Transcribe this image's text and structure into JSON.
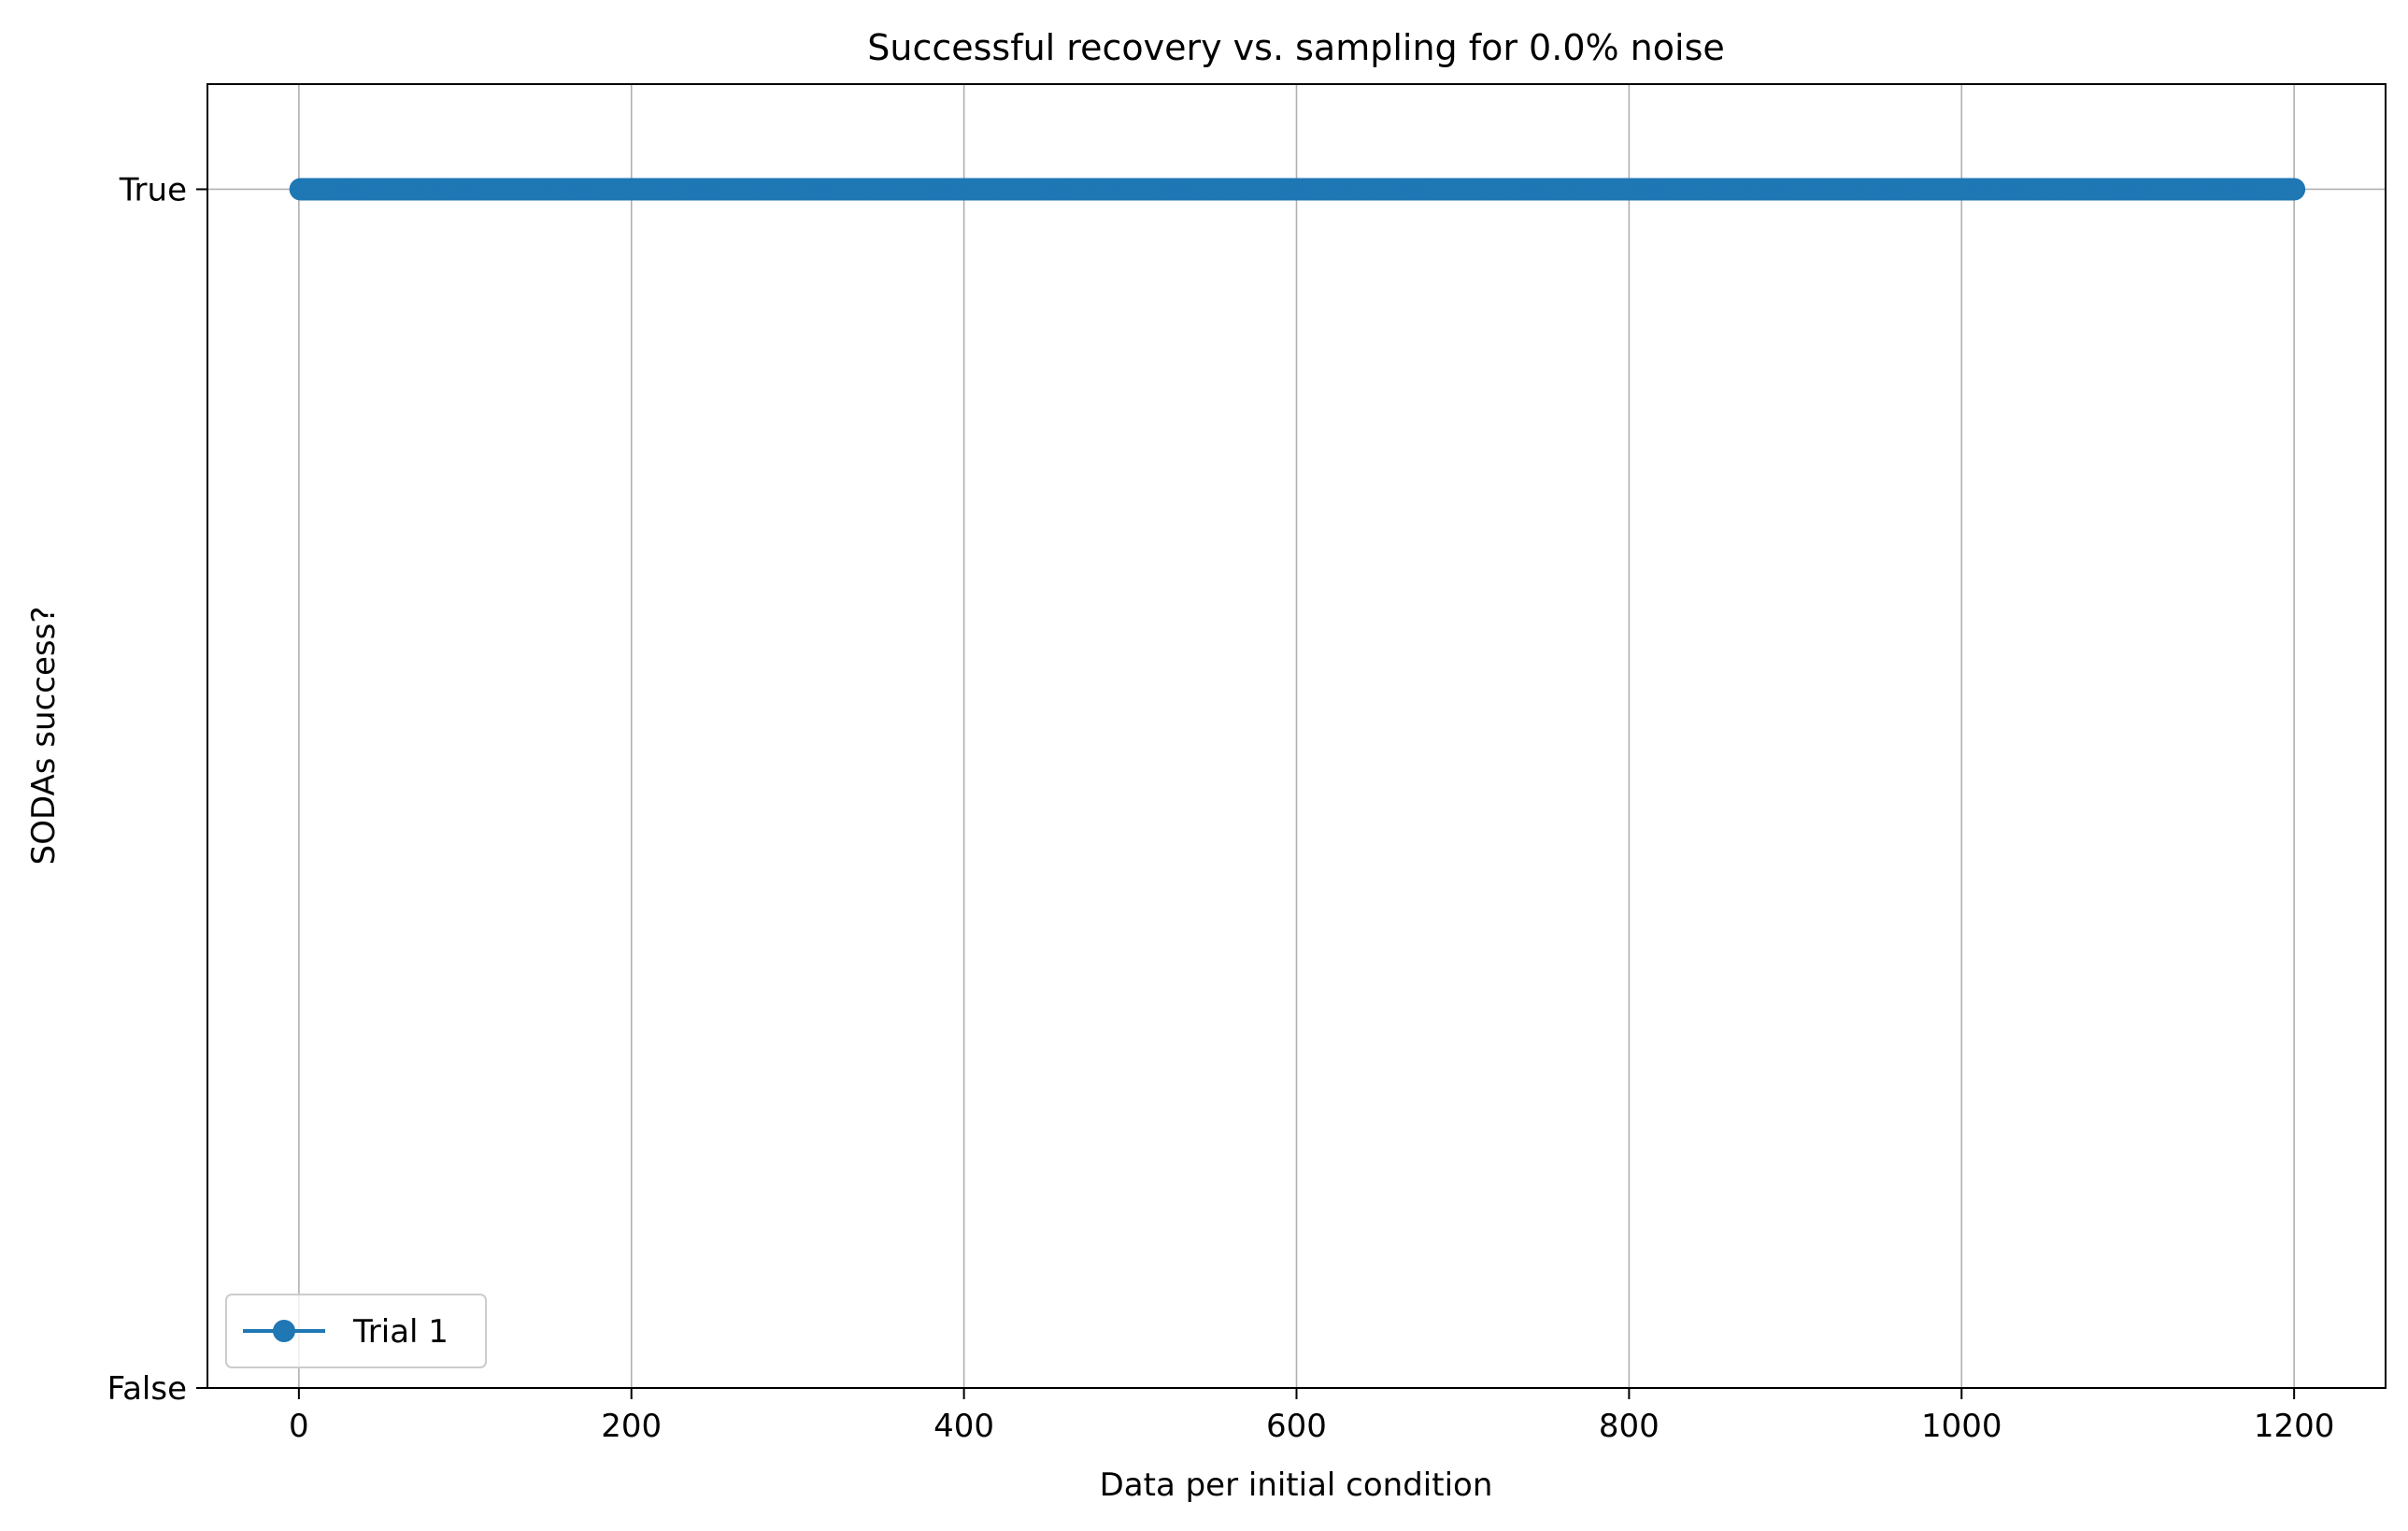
{
  "chart_data": {
    "type": "line",
    "title": "Successful recovery vs. sampling for 0.0% noise",
    "xlabel": "Data per initial condition",
    "ylabel": "SODAs success?",
    "xlim": [
      -55,
      1255
    ],
    "ylim": [
      0,
      1.0877
    ],
    "x_ticks": [
      0,
      200,
      400,
      600,
      800,
      1000,
      1200
    ],
    "y_ticks": [
      {
        "value": 0,
        "label": "False"
      },
      {
        "value": 1,
        "label": "True"
      }
    ],
    "grid": true,
    "legend_position": "lower left",
    "series": [
      {
        "name": "Trial 1",
        "color": "#1f77b4",
        "marker": "circle",
        "x_start": 1,
        "x_end": 1200,
        "x_step": 1,
        "y": 1
      }
    ]
  }
}
